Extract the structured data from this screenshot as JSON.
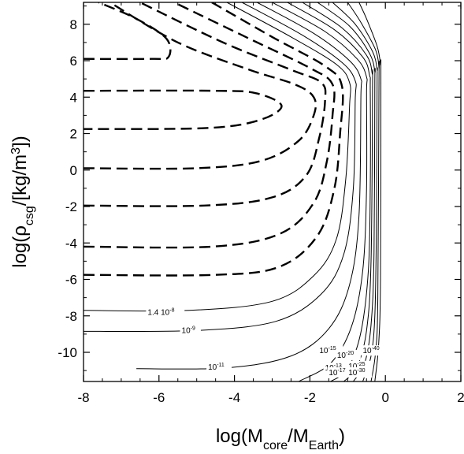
{
  "chart_data": {
    "type": "contour",
    "xlabel": {
      "pre": "log(M",
      "sub1": "core",
      "mid": "/M",
      "sub2": "Earth",
      "post": ")"
    },
    "ylabel": {
      "pre": "log(ρ",
      "sub": "csg",
      "mid": "/[kg/m",
      "sup": "3",
      "post": "])"
    },
    "xlim": [
      -8,
      2
    ],
    "ylim": [
      -11.6,
      9.2
    ],
    "x_ticks": [
      -8,
      -6,
      -4,
      -2,
      0,
      2
    ],
    "x_tick_labels": [
      "-8",
      "-6",
      "-4",
      "-2",
      "0",
      "2"
    ],
    "y_ticks": [
      -10,
      -8,
      -6,
      -4,
      -2,
      0,
      2,
      4,
      6,
      8
    ],
    "y_tick_labels": [
      "-10",
      "-8",
      "-6",
      "-4",
      "-2",
      "0",
      "2",
      "4",
      "6",
      "8"
    ],
    "grid": false,
    "dashed_contours": [
      [
        [
          -8,
          6.1
        ],
        [
          -6.2,
          6.1
        ],
        [
          -5.75,
          6.2
        ],
        [
          -5.8,
          7.2
        ],
        [
          -6.6,
          8.3
        ],
        [
          -7.6,
          9.2
        ]
      ],
      [
        [
          -8,
          4.35
        ],
        [
          -4.5,
          4.35
        ],
        [
          -3.4,
          4.2
        ],
        [
          -2.75,
          3.5
        ],
        [
          -3.4,
          2.7
        ],
        [
          -4.8,
          2.3
        ],
        [
          -8,
          2.25
        ]
      ],
      [
        [
          -8,
          0.1
        ],
        [
          -5,
          0.1
        ],
        [
          -3.3,
          0.5
        ],
        [
          -2.3,
          1.6
        ],
        [
          -1.9,
          3.0
        ],
        [
          -1.9,
          4.0
        ],
        [
          -2.4,
          4.7
        ],
        [
          -3.6,
          5.5
        ],
        [
          -5.5,
          7.0
        ],
        [
          -7.3,
          9.2
        ]
      ],
      [
        [
          -8,
          -1.95
        ],
        [
          -4.8,
          -1.95
        ],
        [
          -3.0,
          -1.5
        ],
        [
          -2.1,
          -0.3
        ],
        [
          -1.75,
          1.8
        ],
        [
          -1.6,
          3.8
        ],
        [
          -1.7,
          4.8
        ],
        [
          -2.5,
          5.5
        ],
        [
          -4.3,
          7.0
        ],
        [
          -6.5,
          9.2
        ]
      ],
      [
        [
          -8,
          -4.2
        ],
        [
          -4.6,
          -4.2
        ],
        [
          -2.8,
          -3.5
        ],
        [
          -1.9,
          -1.8
        ],
        [
          -1.55,
          0.5
        ],
        [
          -1.4,
          3.0
        ],
        [
          -1.4,
          4.7
        ],
        [
          -2.0,
          5.6
        ],
        [
          -3.6,
          7.2
        ],
        [
          -5.6,
          9.2
        ]
      ],
      [
        [
          -8,
          -5.75
        ],
        [
          -4.5,
          -5.75
        ],
        [
          -2.8,
          -5.3
        ],
        [
          -1.8,
          -3.6
        ],
        [
          -1.35,
          -1.0
        ],
        [
          -1.2,
          2.0
        ],
        [
          -1.15,
          4.6
        ],
        [
          -1.6,
          5.7
        ],
        [
          -3.0,
          7.3
        ],
        [
          -4.6,
          9.2
        ]
      ]
    ],
    "solid_contours": [
      [
        [
          -8,
          -7.7
        ],
        [
          -5.2,
          -7.7
        ],
        [
          -3.0,
          -7.2
        ],
        [
          -1.9,
          -5.8
        ],
        [
          -1.3,
          -3.8
        ],
        [
          -1.05,
          -0.5
        ],
        [
          -0.95,
          3.5
        ],
        [
          -0.95,
          4.8
        ],
        [
          -1.3,
          5.8
        ],
        [
          -2.5,
          7.3
        ],
        [
          -4.2,
          9.2
        ]
      ],
      [
        [
          -8,
          -8.85
        ],
        [
          -5,
          -8.8
        ],
        [
          -2.9,
          -8.3
        ],
        [
          -1.7,
          -6.8
        ],
        [
          -1.1,
          -4.6
        ],
        [
          -0.85,
          -1.0
        ],
        [
          -0.8,
          3.8
        ],
        [
          -0.8,
          4.9
        ],
        [
          -1.15,
          5.9
        ],
        [
          -2.2,
          7.4
        ],
        [
          -3.8,
          9.2
        ]
      ],
      [
        [
          -6.6,
          -10.9
        ],
        [
          -4.2,
          -10.85
        ],
        [
          -2.5,
          -10.2
        ],
        [
          -1.5,
          -8.7
        ],
        [
          -0.95,
          -6.3
        ],
        [
          -0.7,
          -2.5
        ],
        [
          -0.65,
          4.0
        ],
        [
          -0.65,
          5.0
        ],
        [
          -0.95,
          6.0
        ],
        [
          -1.9,
          7.5
        ],
        [
          -3.4,
          9.2
        ]
      ],
      [
        [
          -2.3,
          -11.6
        ],
        [
          -1.45,
          -10.6
        ],
        [
          -0.9,
          -8.6
        ],
        [
          -0.6,
          -5.5
        ],
        [
          -0.5,
          -1.0
        ],
        [
          -0.5,
          4.2
        ],
        [
          -0.5,
          5.1
        ],
        [
          -0.75,
          6.1
        ],
        [
          -1.6,
          7.6
        ],
        [
          -3.0,
          9.2
        ]
      ],
      [
        [
          -1.45,
          -11.6
        ],
        [
          -1.0,
          -10.9
        ],
        [
          -0.65,
          -8.9
        ],
        [
          -0.45,
          -5.5
        ],
        [
          -0.4,
          -1.0
        ],
        [
          -0.4,
          4.4
        ],
        [
          -0.42,
          5.2
        ],
        [
          -0.6,
          6.2
        ],
        [
          -1.35,
          7.7
        ],
        [
          -2.6,
          9.2
        ]
      ],
      [
        [
          -1.1,
          -11.6
        ],
        [
          -0.75,
          -10.8
        ],
        [
          -0.5,
          -8.8
        ],
        [
          -0.38,
          -5.0
        ],
        [
          -0.34,
          4.6
        ],
        [
          -0.35,
          5.3
        ],
        [
          -0.5,
          6.3
        ],
        [
          -1.15,
          7.8
        ],
        [
          -2.2,
          9.2
        ]
      ],
      [
        [
          -0.85,
          -11.6
        ],
        [
          -0.55,
          -10.6
        ],
        [
          -0.38,
          -8.5
        ],
        [
          -0.3,
          -4.5
        ],
        [
          -0.28,
          4.7
        ],
        [
          -0.28,
          5.4
        ],
        [
          -0.42,
          6.4
        ],
        [
          -0.95,
          7.9
        ],
        [
          -1.8,
          9.2
        ]
      ],
      [
        [
          -0.6,
          -11.6
        ],
        [
          -0.38,
          -10.2
        ],
        [
          -0.28,
          -8.0
        ],
        [
          -0.24,
          -3.5
        ],
        [
          -0.22,
          4.8
        ],
        [
          -0.22,
          5.5
        ],
        [
          -0.34,
          6.5
        ],
        [
          -0.8,
          8.0
        ],
        [
          -1.4,
          9.2
        ]
      ],
      [
        [
          -0.38,
          -11.6
        ],
        [
          -0.26,
          -10.0
        ],
        [
          -0.2,
          -7.0
        ],
        [
          -0.17,
          4.9
        ],
        [
          -0.17,
          5.6
        ],
        [
          -0.26,
          6.6
        ],
        [
          -0.65,
          8.1
        ],
        [
          -1.0,
          9.2
        ]
      ],
      [
        [
          -0.28,
          -11.6
        ],
        [
          -0.18,
          -9.6
        ],
        [
          -0.13,
          -6.0
        ],
        [
          -0.12,
          5.0
        ],
        [
          -0.13,
          5.8
        ],
        [
          -0.22,
          6.8
        ],
        [
          -0.5,
          8.3
        ],
        [
          -0.7,
          9.2
        ]
      ]
    ],
    "annotations": [
      {
        "x": -6.3,
        "y": -7.95,
        "base": "1.4 10",
        "exp": "-8"
      },
      {
        "x": -5.4,
        "y": -8.95,
        "base": "10",
        "exp": "-9"
      },
      {
        "x": -4.7,
        "y": -10.95,
        "base": "10",
        "exp": "-11"
      },
      {
        "x": -1.75,
        "y": -10.05,
        "base": "10",
        "exp": "-15"
      },
      {
        "x": -1.28,
        "y": -10.3,
        "base": "10",
        "exp": "-20"
      },
      {
        "x": -0.6,
        "y": -10.05,
        "base": "10",
        "exp": "-40"
      },
      {
        "x": -1.6,
        "y": -11.0,
        "base": "10",
        "exp": "-13"
      },
      {
        "x": -1.5,
        "y": -11.25,
        "base": "10",
        "exp": "-17"
      },
      {
        "x": -0.98,
        "y": -10.9,
        "base": "10",
        "exp": "-25"
      },
      {
        "x": -0.98,
        "y": -11.25,
        "base": "10",
        "exp": "-30"
      }
    ]
  }
}
